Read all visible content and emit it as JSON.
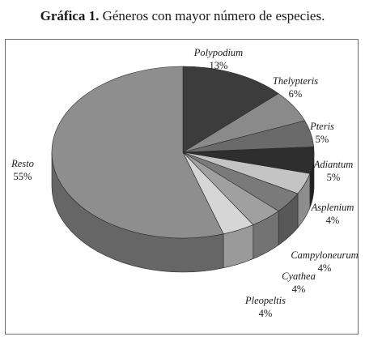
{
  "caption": {
    "prefix": "Gráfica 1.",
    "text": "Géneros con mayor número de especies."
  },
  "colors": {
    "Polypodium": "#3c3c3c",
    "Thelypteris": "#8a8a8a",
    "Pteris": "#6a6a6a",
    "Adiantum": "#2e2e2e",
    "Asplenium": "#c4c4c4",
    "Campyloneurum": "#7a7a7a",
    "Cyathea": "#a0a0a0",
    "Pleopeltis": "#d6d6d6",
    "Resto": "#8e8e8e"
  },
  "chart_data": {
    "type": "pie",
    "style": "3d",
    "title": "Géneros con mayor número de especies.",
    "slices": [
      {
        "label": "Polypodium",
        "value": 13,
        "display": "13%"
      },
      {
        "label": "Thelypteris",
        "value": 6,
        "display": "6%"
      },
      {
        "label": "Pteris",
        "value": 5,
        "display": "5%"
      },
      {
        "label": "Adiantum",
        "value": 5,
        "display": "5%"
      },
      {
        "label": "Asplenium",
        "value": 4,
        "display": "4%"
      },
      {
        "label": "Campyloneurum",
        "value": 4,
        "display": "4%"
      },
      {
        "label": "Cyathea",
        "value": 4,
        "display": "4%"
      },
      {
        "label": "Pleopeltis",
        "value": 4,
        "display": "4%"
      },
      {
        "label": "Resto",
        "value": 55,
        "display": "55%"
      }
    ],
    "legend": "none"
  }
}
